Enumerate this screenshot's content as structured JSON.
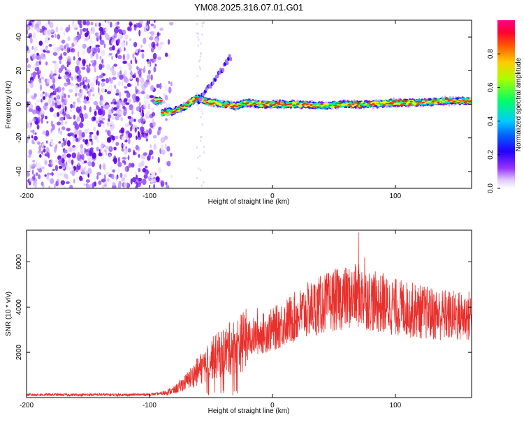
{
  "figure_title": "YM08.2025.316.07.01.G01",
  "chart_data": [
    {
      "type": "heatmap",
      "title": "YM08.2025.316.07.01.G01",
      "xlabel": "Height of straight line (km)",
      "ylabel": "Frequency (Hz)",
      "xlim": [
        -200,
        162
      ],
      "ylim": [
        -50,
        50
      ],
      "x_ticks": [
        -200,
        -100,
        0,
        100
      ],
      "y_ticks": [
        -40,
        -20,
        0,
        20,
        40
      ],
      "colorbar": {
        "label": "Normalized spectral amplitude",
        "range": [
          0.0,
          1.0
        ],
        "ticks": [
          "0.0",
          "0.2",
          "0.4",
          "0.6",
          "0.8"
        ],
        "colors": [
          "#ffffff",
          "#cc99ff",
          "#8000ff",
          "#0000ff",
          "#00c8ff",
          "#00ff80",
          "#c8ff00",
          "#ff8000",
          "#ff0000",
          "#ff0080"
        ]
      },
      "ridge": {
        "description_points": [
          {
            "x": -90,
            "y": -5
          },
          {
            "x": -80,
            "y": -4
          },
          {
            "x": -70,
            "y": -1
          },
          {
            "x": -65,
            "y": 2
          },
          {
            "x": -60,
            "y": 4
          },
          {
            "x": -55,
            "y": 2
          },
          {
            "x": -50,
            "y": 1
          },
          {
            "x": -40,
            "y": 0
          },
          {
            "x": -30,
            "y": -1
          },
          {
            "x": -20,
            "y": 1
          },
          {
            "x": -10,
            "y": 0
          },
          {
            "x": 0,
            "y": 0
          },
          {
            "x": 20,
            "y": 0
          },
          {
            "x": 40,
            "y": -1
          },
          {
            "x": 60,
            "y": 0
          },
          {
            "x": 80,
            "y": 0
          },
          {
            "x": 100,
            "y": 1
          },
          {
            "x": 120,
            "y": 1
          },
          {
            "x": 140,
            "y": 2
          },
          {
            "x": 162,
            "y": 2
          }
        ]
      }
    },
    {
      "type": "line",
      "xlabel": "Height of straight line (km)",
      "ylabel": "SNR (10 * v/v)",
      "xlim": [
        -200,
        162
      ],
      "ylim": [
        0,
        7400
      ],
      "x_ticks": [
        -200,
        -100,
        0,
        100
      ],
      "y_ticks": [
        2000,
        4000,
        6000
      ],
      "color": "#e8302c",
      "series": [
        {
          "name": "SNR",
          "x": [
            -200,
            -180,
            -160,
            -140,
            -120,
            -100,
            -90,
            -80,
            -70,
            -60,
            -50,
            -40,
            -30,
            -20,
            -10,
            0,
            10,
            20,
            30,
            40,
            50,
            60,
            70,
            80,
            90,
            100,
            110,
            120,
            130,
            140,
            150,
            162
          ],
          "values": [
            120,
            130,
            120,
            130,
            120,
            140,
            180,
            320,
            700,
            1200,
            1700,
            2000,
            2300,
            2600,
            2800,
            3000,
            3300,
            3600,
            3900,
            4100,
            4300,
            4400,
            4500,
            4300,
            4100,
            4000,
            3900,
            3800,
            3700,
            3650,
            3600,
            3600
          ],
          "peaks": [
            {
              "x": -68,
              "y": 900
            },
            {
              "x": -45,
              "y": 2400
            },
            {
              "x": -40,
              "y": 2900
            },
            {
              "x": -22,
              "y": 3500
            },
            {
              "x": -12,
              "y": 3950
            },
            {
              "x": 28,
              "y": 3900
            },
            {
              "x": 45,
              "y": 4600
            },
            {
              "x": 55,
              "y": 5200
            },
            {
              "x": 60,
              "y": 5500
            },
            {
              "x": 70,
              "y": 7300
            },
            {
              "x": 75,
              "y": 6200
            },
            {
              "x": 90,
              "y": 5500
            },
            {
              "x": 100,
              "y": 4800
            },
            {
              "x": 110,
              "y": 4600
            },
            {
              "x": 130,
              "y": 4200
            }
          ]
        }
      ]
    }
  ]
}
